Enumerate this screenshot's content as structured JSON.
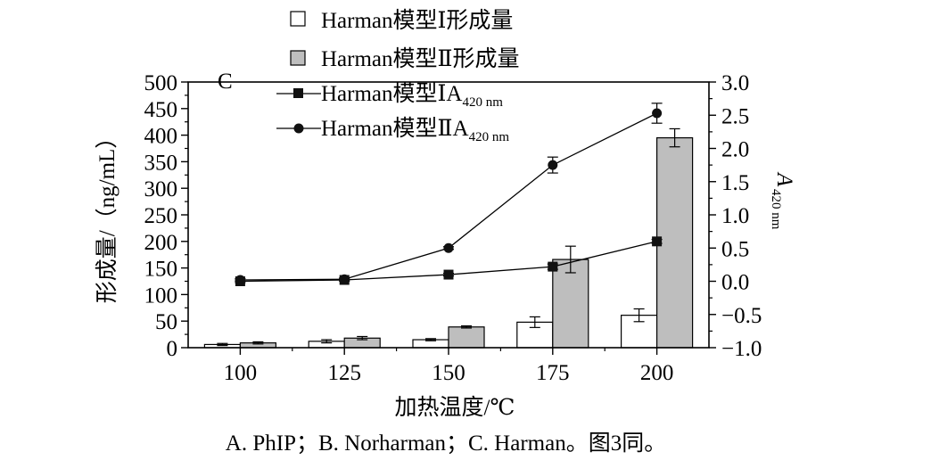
{
  "chart_data": {
    "type": "bar",
    "panel_label": "C",
    "caption": "A. PhIP；B. Norharman；C. Harman。图3同。",
    "x_label": "加热温度/℃",
    "y_left_label": "形成量/（ng/mL）",
    "y_right_label_main": "A",
    "y_right_label_sub": "420 nm",
    "categories": [
      "100",
      "125",
      "150",
      "175",
      "200"
    ],
    "y_left_range": [
      0,
      500
    ],
    "y_left_ticks": [
      "0",
      "50",
      "100",
      "150",
      "200",
      "250",
      "300",
      "350",
      "400",
      "450",
      "500"
    ],
    "y_right_range": [
      -1.0,
      3.0
    ],
    "y_right_ticks": [
      "−1.0",
      "−0.5",
      "0.0",
      "0.5",
      "1.0",
      "1.5",
      "2.0",
      "2.5",
      "3.0"
    ],
    "bar_series": [
      {
        "name": "Harman模型Ⅰ形成量",
        "color": "#ffffff",
        "values": [
          6,
          12,
          15,
          48,
          61
        ],
        "errors": [
          2,
          3,
          2,
          10,
          12
        ]
      },
      {
        "name": "Harman模型Ⅱ形成量",
        "color": "#bebebe",
        "values": [
          9,
          18,
          39,
          166,
          395
        ],
        "errors": [
          2,
          3,
          2,
          25,
          17
        ]
      }
    ],
    "line_series": [
      {
        "name_main": "Harman模型ⅠA",
        "name_sub": "420 nm",
        "marker": "square",
        "values": [
          0.0,
          0.02,
          0.1,
          0.22,
          0.6
        ],
        "errors": [
          0.02,
          0.02,
          0.02,
          0.04,
          0.03
        ]
      },
      {
        "name_main": "Harman模型ⅡA",
        "name_sub": "420 nm",
        "marker": "circle",
        "values": [
          0.02,
          0.03,
          0.5,
          1.75,
          2.53
        ],
        "errors": [
          0.02,
          0.02,
          0.02,
          0.12,
          0.15
        ]
      }
    ]
  }
}
